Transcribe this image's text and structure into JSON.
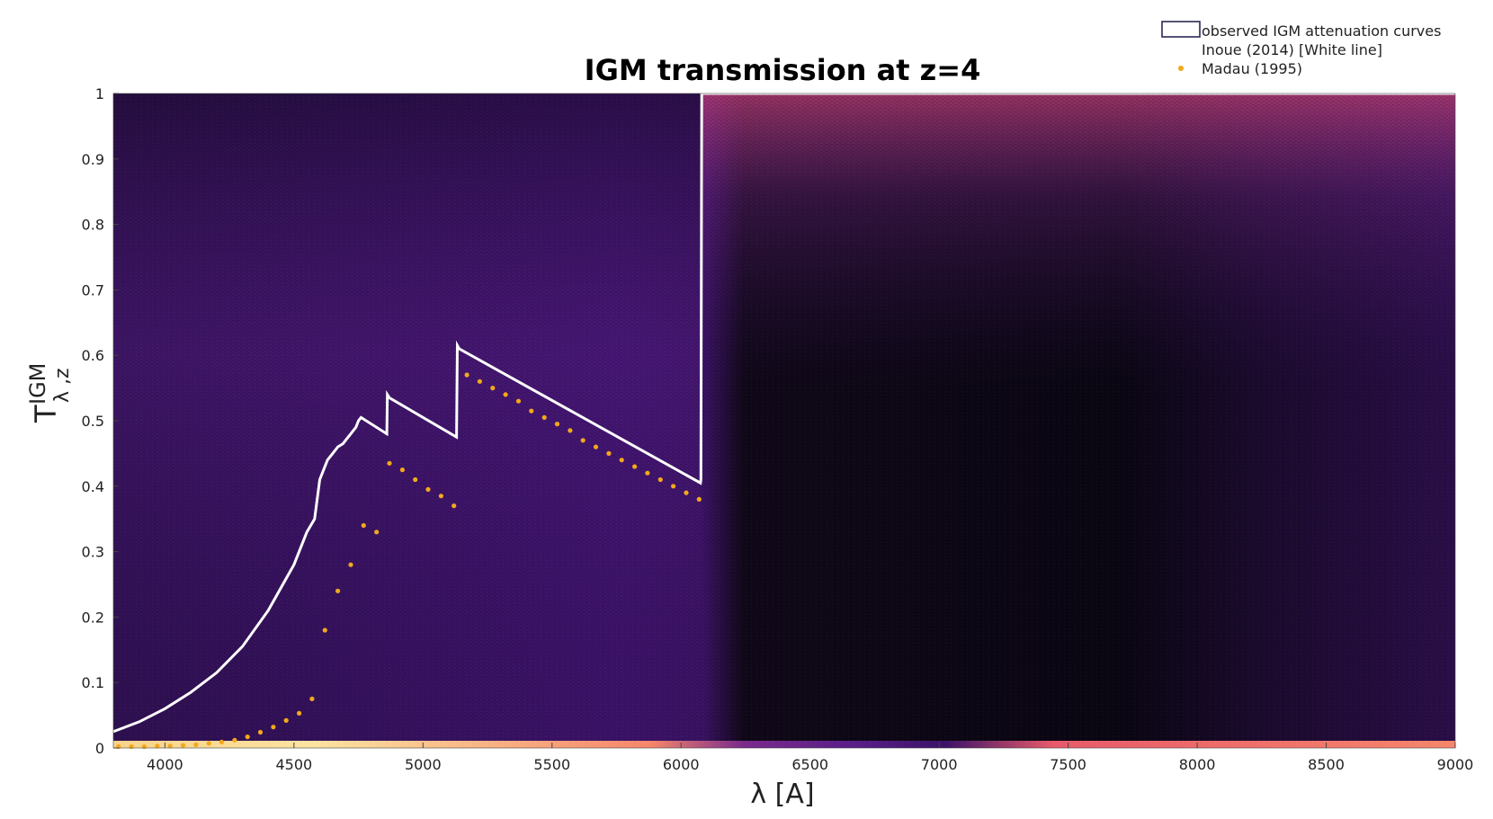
{
  "chart_data": {
    "type": "heatmap",
    "title": "IGM transmission at z=4",
    "xlabel": "λ [A]",
    "ylabel_main": "T",
    "ylabel_sup": "IGM",
    "ylabel_sub": "λ ,z",
    "xlim": [
      3800,
      9000
    ],
    "ylim": [
      0,
      1
    ],
    "xticks": [
      "4000",
      "4500",
      "5000",
      "5500",
      "6000",
      "6500",
      "7000",
      "7500",
      "8000",
      "8500",
      "9000"
    ],
    "yticks": [
      "0",
      "0.1",
      "0.2",
      "0.3",
      "0.4",
      "0.5",
      "0.6",
      "0.7",
      "0.8",
      "0.9",
      "1"
    ],
    "legend": {
      "placement": "top-right",
      "entries": [
        {
          "label": "observed IGM attenuation curves",
          "style": "box"
        },
        {
          "label": "Inoue (2014) [White line]",
          "style": "none"
        },
        {
          "label": "Madau (1995)",
          "style": "dot",
          "color": "#f2a81d"
        }
      ]
    },
    "colors": {
      "heatmap_low": "#07050f",
      "heatmap_mid": "#3b1268",
      "heatmap_high": "#c0407a",
      "heatmap_bottom_band": "#f6866b",
      "inoue_line": "#ffffff",
      "madau_dots": "#f2a81d"
    },
    "series": [
      {
        "name": "Inoue (2014) [White line]",
        "style": "line",
        "x": [
          3800,
          3900,
          4000,
          4100,
          4200,
          4300,
          4400,
          4450,
          4500,
          4550,
          4580,
          4600,
          4630,
          4650,
          4670,
          4690,
          4700,
          4720,
          4740,
          4750,
          4760,
          4860,
          4862,
          4870,
          5130,
          5133,
          5140,
          6075,
          6077,
          6080,
          9000
        ],
        "y": [
          0.025,
          0.04,
          0.06,
          0.085,
          0.115,
          0.155,
          0.21,
          0.245,
          0.28,
          0.33,
          0.35,
          0.41,
          0.44,
          0.45,
          0.46,
          0.465,
          0.47,
          0.48,
          0.49,
          0.5,
          0.505,
          0.48,
          0.54,
          0.535,
          0.475,
          0.615,
          0.61,
          0.405,
          0.41,
          1.0,
          1.0
        ]
      },
      {
        "name": "Madau (1995)",
        "style": "dots",
        "x": [
          3820,
          3870,
          3920,
          3970,
          4020,
          4070,
          4120,
          4170,
          4220,
          4270,
          4320,
          4370,
          4420,
          4470,
          4520,
          4570,
          4620,
          4670,
          4720,
          4770,
          4820,
          4870,
          4920,
          4970,
          5020,
          5070,
          5120,
          5170,
          5220,
          5270,
          5320,
          5370,
          5420,
          5470,
          5520,
          5570,
          5620,
          5670,
          5720,
          5770,
          5820,
          5870,
          5920,
          5970,
          6020,
          6070
        ],
        "y": [
          0.002,
          0.002,
          0.002,
          0.003,
          0.003,
          0.004,
          0.005,
          0.007,
          0.009,
          0.012,
          0.017,
          0.024,
          0.032,
          0.042,
          0.053,
          0.075,
          0.18,
          0.24,
          0.28,
          0.34,
          0.33,
          0.435,
          0.425,
          0.41,
          0.395,
          0.385,
          0.37,
          0.57,
          0.56,
          0.55,
          0.54,
          0.53,
          0.515,
          0.505,
          0.495,
          0.485,
          0.47,
          0.46,
          0.45,
          0.44,
          0.43,
          0.42,
          0.41,
          0.4,
          0.39,
          0.38
        ]
      }
    ]
  }
}
